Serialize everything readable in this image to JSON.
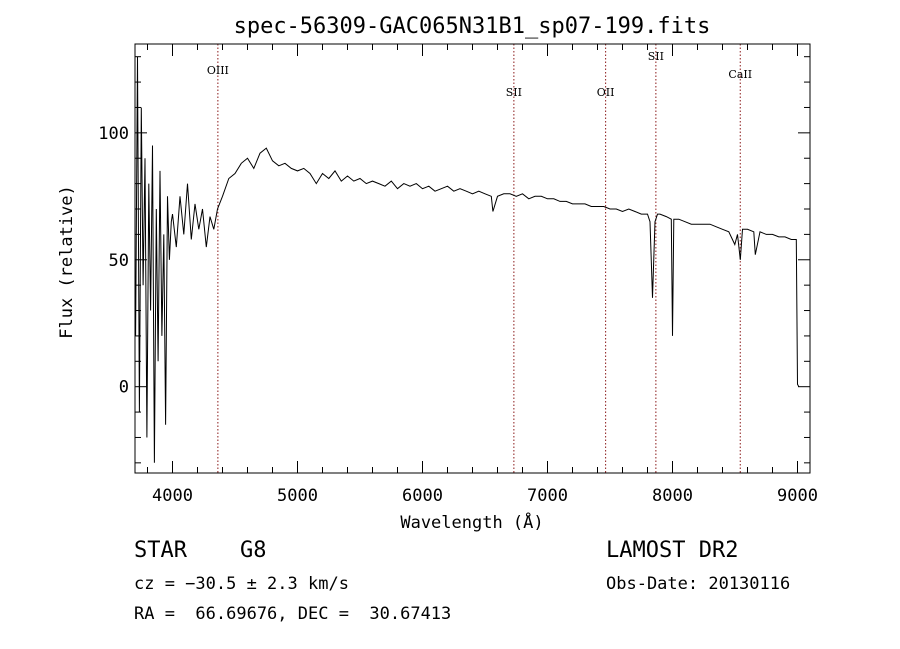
{
  "chart_data": {
    "type": "line",
    "title": "spec-56309-GAC065N31B1_sp07-199.fits",
    "xlabel": "Wavelength (Å)",
    "ylabel": "Flux (relative)",
    "xlim": [
      3700,
      9100
    ],
    "ylim": [
      -34,
      135
    ],
    "xticks": [
      4000,
      5000,
      6000,
      7000,
      8000,
      9000
    ],
    "yticks": [
      0,
      50,
      100
    ],
    "grid": false,
    "colors": {
      "line": "#000000",
      "marker": "#8b1a1a",
      "axes": "#000000"
    },
    "lines": [
      {
        "label": "OIII",
        "wavelength": 4363
      },
      {
        "label": "SII",
        "wavelength": 6731
      },
      {
        "label": "OII",
        "wavelength": 7465
      },
      {
        "label": "SII",
        "wavelength": 7867
      },
      {
        "label": "CaII",
        "wavelength": 8542
      }
    ],
    "series": [
      {
        "x": [
          3705,
          3720,
          3735,
          3750,
          3765,
          3780,
          3795,
          3810,
          3825,
          3840,
          3855,
          3870,
          3885,
          3900,
          3915,
          3930,
          3945,
          3960,
          3975,
          3990,
          4000,
          4030,
          4060,
          4090,
          4120,
          4150,
          4180,
          4210,
          4240,
          4270,
          4300,
          4330,
          4360,
          4400,
          4450,
          4500,
          4550,
          4600,
          4650,
          4700,
          4750,
          4800,
          4850,
          4900,
          4950,
          5000,
          5050,
          5100,
          5150,
          5200,
          5250,
          5300,
          5350,
          5400,
          5450,
          5500,
          5550,
          5600,
          5650,
          5700,
          5750,
          5800,
          5850,
          5900,
          5950,
          6000,
          6050,
          6100,
          6150,
          6200,
          6250,
          6300,
          6350,
          6400,
          6450,
          6500,
          6550,
          6563,
          6600,
          6650,
          6700,
          6750,
          6800,
          6850,
          6900,
          6950,
          7000,
          7050,
          7100,
          7150,
          7200,
          7250,
          7300,
          7350,
          7400,
          7450,
          7500,
          7550,
          7600,
          7650,
          7700,
          7750,
          7800,
          7820,
          7840,
          7860,
          7880,
          7900,
          7950,
          7990,
          8000,
          8010,
          8050,
          8100,
          8150,
          8200,
          8250,
          8300,
          8350,
          8400,
          8450,
          8498,
          8520,
          8542,
          8560,
          8600,
          8650,
          8662,
          8700,
          8750,
          8800,
          8850,
          8900,
          8950,
          8990,
          9000,
          9010
        ],
        "y": [
          20,
          130,
          -10,
          110,
          40,
          90,
          -20,
          80,
          30,
          95,
          -30,
          70,
          10,
          85,
          20,
          60,
          -15,
          75,
          50,
          65,
          68,
          55,
          75,
          60,
          80,
          58,
          72,
          62,
          70,
          55,
          67,
          62,
          70,
          75,
          82,
          84,
          88,
          90,
          86,
          92,
          94,
          89,
          87,
          88,
          86,
          85,
          86,
          84,
          80,
          84,
          82,
          85,
          81,
          83,
          81,
          82,
          80,
          81,
          80,
          79,
          81,
          78,
          80,
          79,
          80,
          78,
          79,
          77,
          78,
          79,
          77,
          78,
          77,
          76,
          77,
          76,
          75,
          69,
          75,
          76,
          76,
          75,
          76,
          74,
          75,
          75,
          74,
          74,
          73,
          73,
          72,
          72,
          72,
          71,
          71,
          71,
          70,
          70,
          69,
          70,
          69,
          68,
          68,
          65,
          35,
          65,
          68,
          68,
          67,
          66,
          20,
          66,
          66,
          65,
          64,
          64,
          64,
          64,
          63,
          62,
          61,
          56,
          60,
          50,
          62,
          62,
          61,
          52,
          61,
          60,
          60,
          59,
          59,
          58,
          58,
          1,
          0
        ]
      }
    ]
  },
  "info": {
    "object_class": "STAR",
    "subclass": "G8",
    "velocity": "cz = −30.5 ± 2.3 km/s",
    "coords": "RA =  66.69676, DEC =  30.67413",
    "survey": "LAMOST DR2",
    "obs_date": "Obs-Date: 20130116"
  }
}
